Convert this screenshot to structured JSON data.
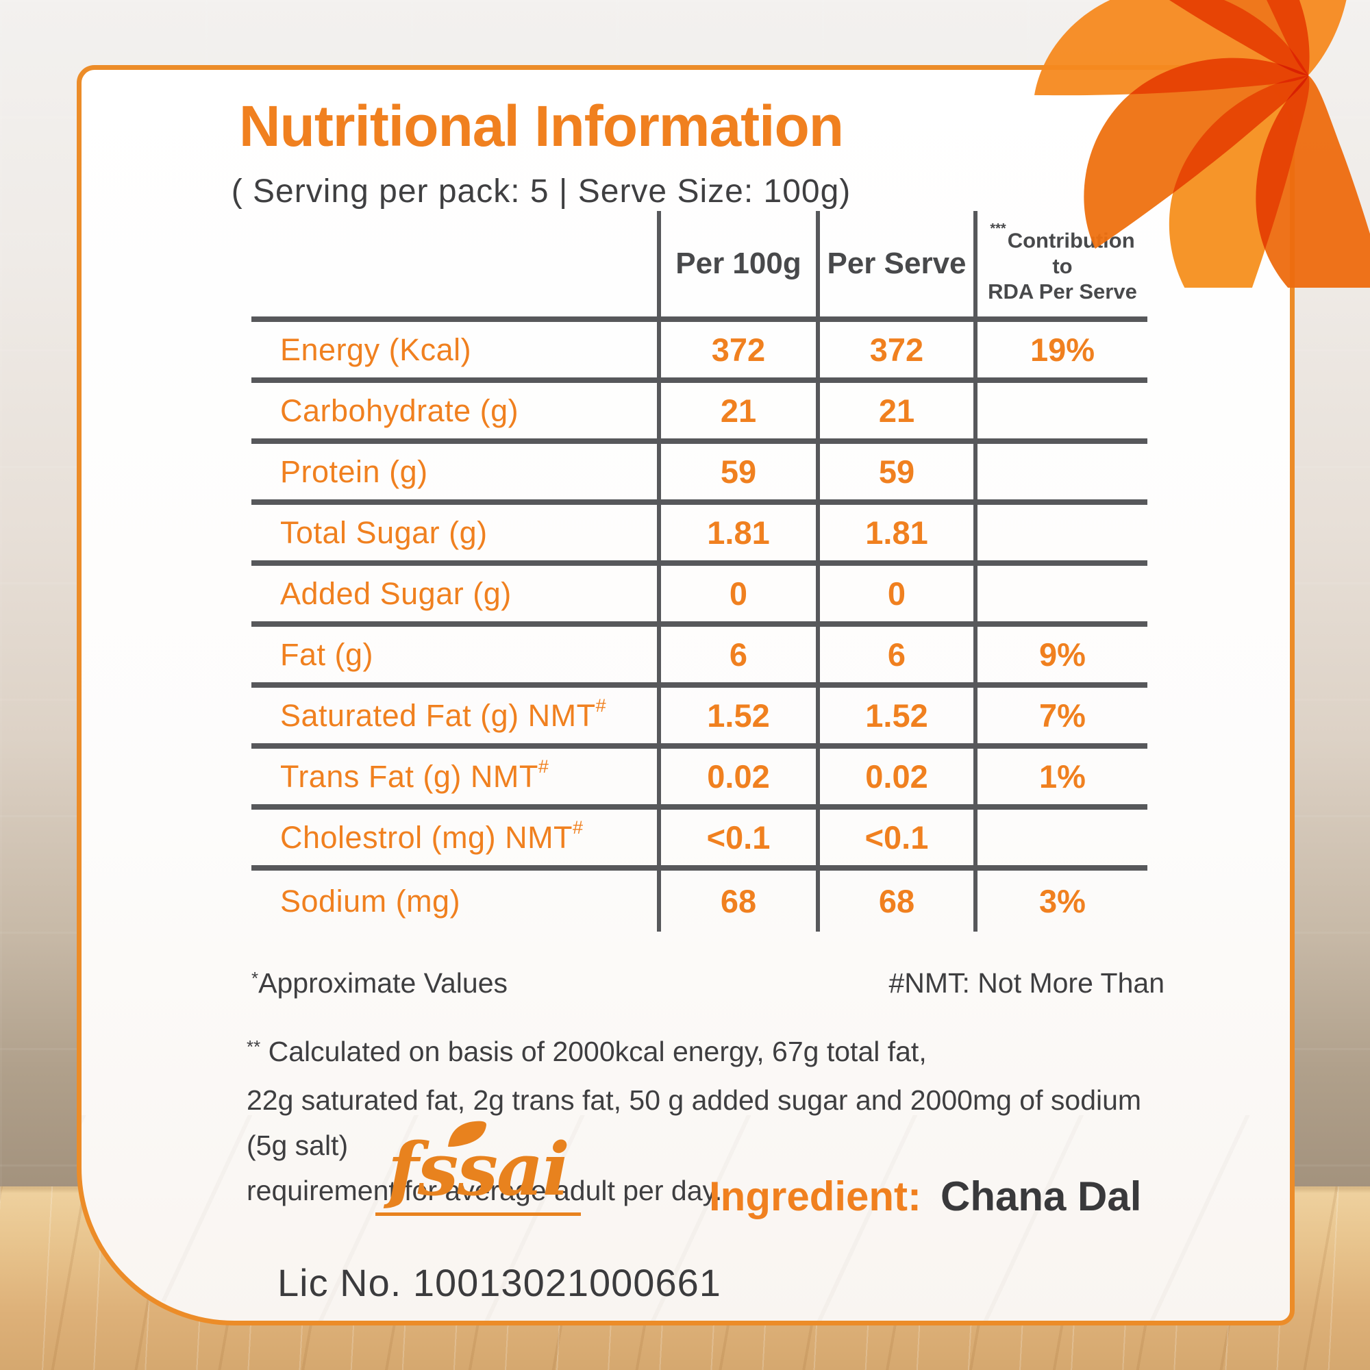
{
  "title": "Nutritional Information",
  "subtitle": "( Serving per pack: 5 | Serve Size: 100g)",
  "accent_color": "#F0801F",
  "grid_color": "#57585B",
  "table": {
    "header": {
      "col_per_100g": "Per 100g",
      "col_per_serve": "Per Serve",
      "col_rda_sup": "***",
      "col_rda_line1": "Contribution to",
      "col_rda_line2": "RDA Per Serve"
    },
    "rows": [
      {
        "label": "Energy (Kcal)",
        "sup": "",
        "per_100g": "372",
        "per_serve": "372",
        "rda": "19%"
      },
      {
        "label": "Carbohydrate (g)",
        "sup": "",
        "per_100g": "21",
        "per_serve": "21",
        "rda": ""
      },
      {
        "label": "Protein (g)",
        "sup": "",
        "per_100g": "59",
        "per_serve": "59",
        "rda": ""
      },
      {
        "label": "Total Sugar (g)",
        "sup": "",
        "per_100g": "1.81",
        "per_serve": "1.81",
        "rda": ""
      },
      {
        "label": "Added Sugar (g)",
        "sup": "",
        "per_100g": "0",
        "per_serve": "0",
        "rda": ""
      },
      {
        "label": "Fat (g)",
        "sup": "",
        "per_100g": "6",
        "per_serve": "6",
        "rda": "9%"
      },
      {
        "label": "Saturated Fat (g) NMT",
        "sup": "#",
        "per_100g": "1.52",
        "per_serve": "1.52",
        "rda": "7%"
      },
      {
        "label": "Trans Fat (g) NMT",
        "sup": "#",
        "per_100g": "0.02",
        "per_serve": "0.02",
        "rda": "1%"
      },
      {
        "label": "Cholestrol (mg) NMT",
        "sup": "#",
        "per_100g": "<0.1",
        "per_serve": "<0.1",
        "rda": ""
      },
      {
        "label": "Sodium (mg)",
        "sup": "",
        "per_100g": "68",
        "per_serve": "68",
        "rda": "3%"
      }
    ]
  },
  "footnotes": {
    "approx_sup": "*",
    "approx": "Approximate Values",
    "nmt": "#NMT: Not More Than",
    "calc_sup": "**",
    "calc_line1": " Calculated on basis of 2000kcal energy, 67g total fat,",
    "calc_line2": "22g saturated fat, 2g trans fat, 50 g added sugar and 2000mg of sodium (5g salt)",
    "calc_line3": "requirement for average adult per day."
  },
  "footer": {
    "fssai_logo": "fssai",
    "license": "Lic No. 10013021000661",
    "ingredient_label": "Ingredient:",
    "ingredient_value": "Chana Dal"
  }
}
